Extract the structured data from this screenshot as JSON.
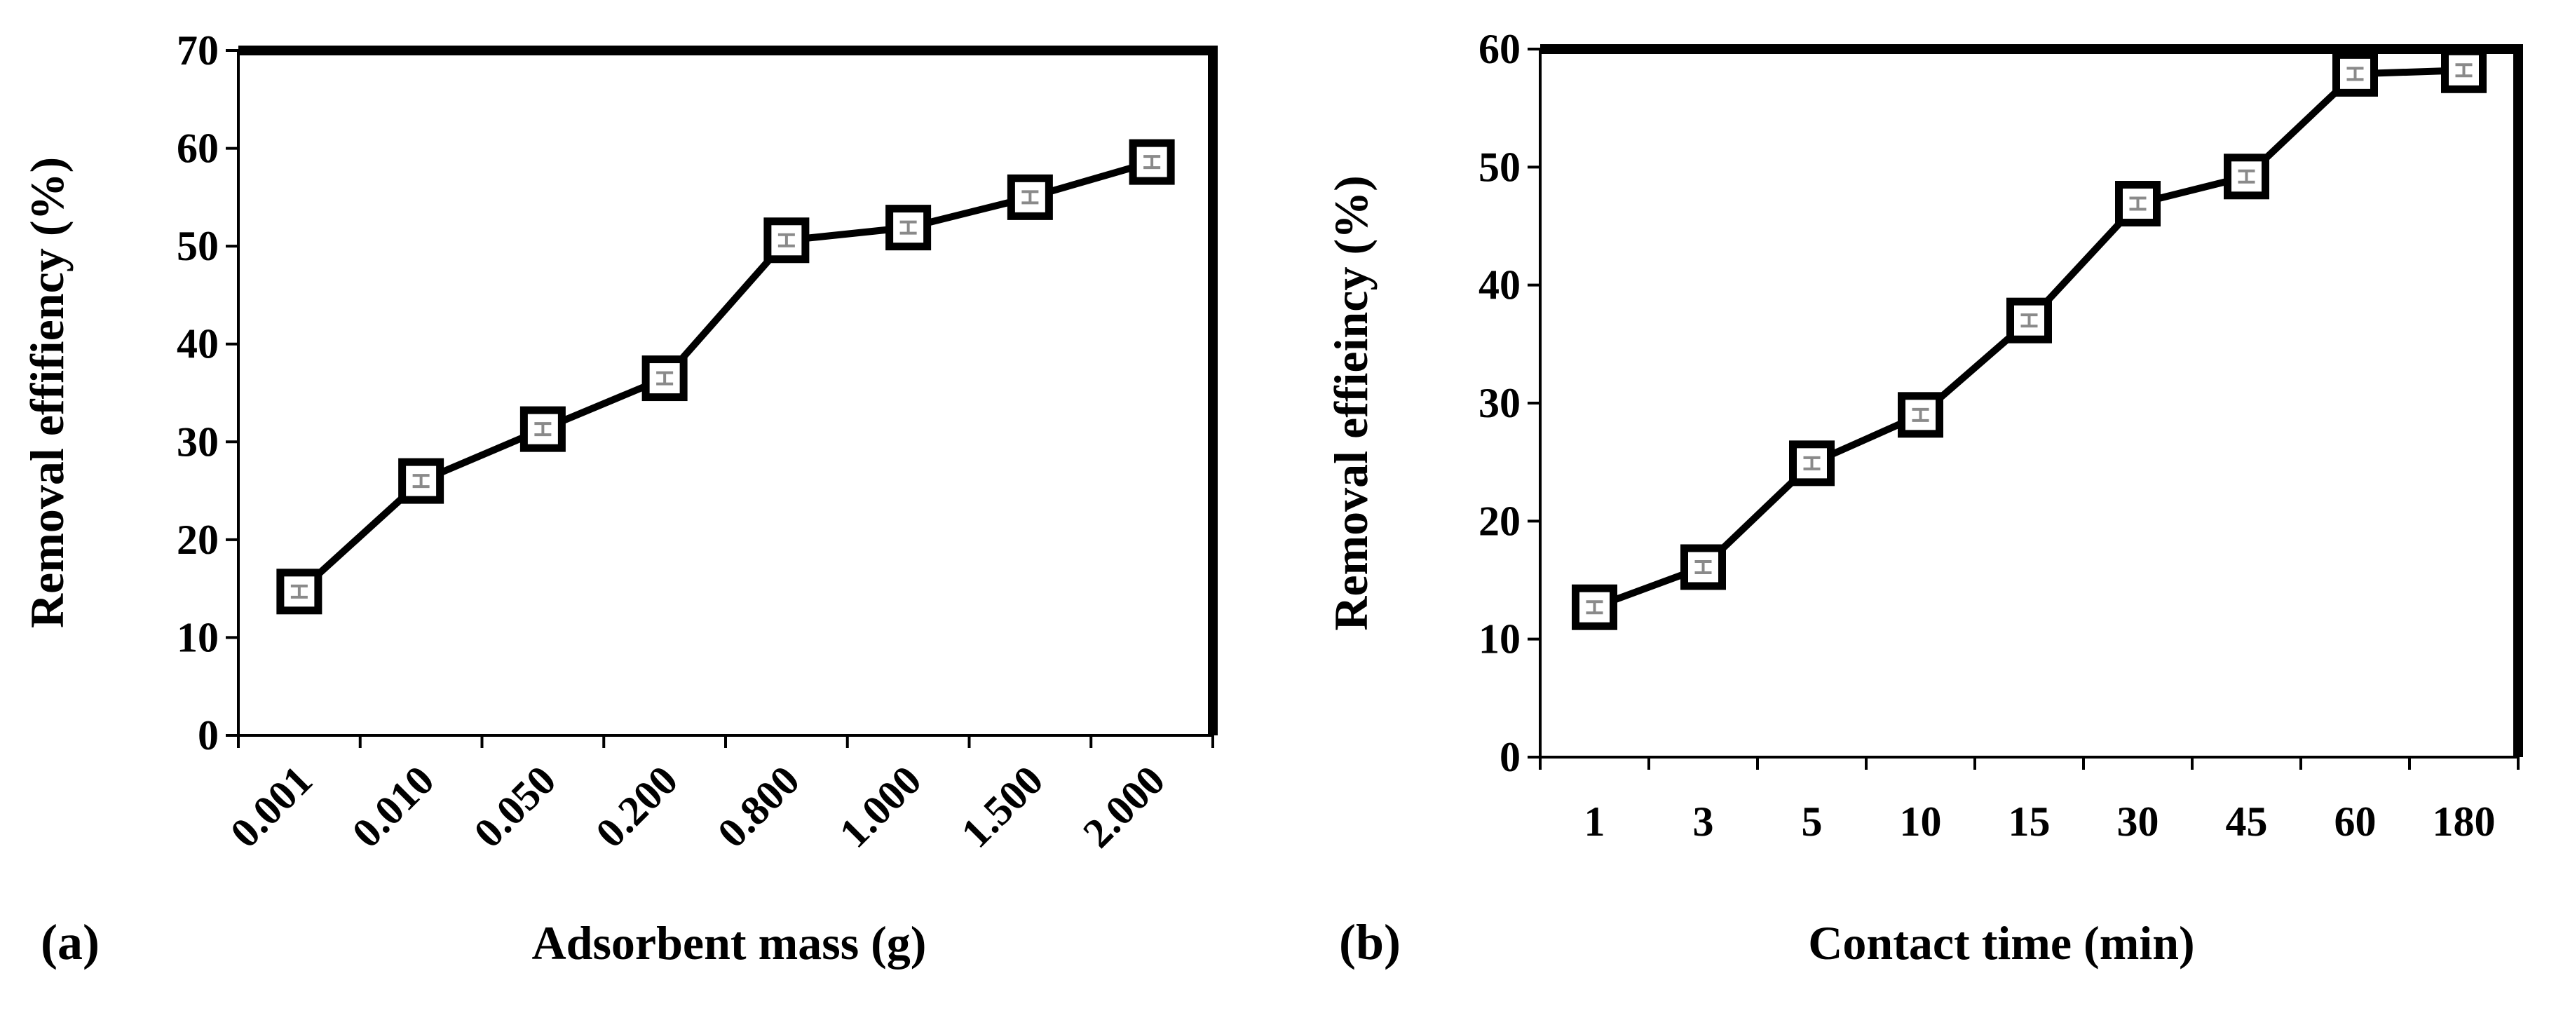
{
  "chart_data": [
    {
      "type": "line",
      "panel_label": "(a)",
      "title": "",
      "xlabel": "Adsorbent mass (g)",
      "ylabel": "Removal effifiency (%)",
      "ylim": [
        0,
        70
      ],
      "yticks": [
        "0",
        "10",
        "20",
        "30",
        "40",
        "50",
        "60",
        "70"
      ],
      "categories": [
        "0.001",
        "0.010",
        "0.050",
        "0.200",
        "0.800",
        "1.000",
        "1.500",
        "2.000"
      ],
      "series": [
        {
          "name": "Removal efficiency",
          "values": [
            14.7,
            26.0,
            31.3,
            36.5,
            50.6,
            51.9,
            55.0,
            58.6
          ]
        }
      ],
      "marker": "square",
      "color": "#000000",
      "grid": false
    },
    {
      "type": "line",
      "panel_label": "(b)",
      "title": "",
      "xlabel": "Contact time (min)",
      "ylabel": "Removal effieincy (%)",
      "ylim": [
        0,
        60
      ],
      "yticks": [
        "0",
        "10",
        "20",
        "30",
        "40",
        "50",
        "60"
      ],
      "categories": [
        "1",
        "3",
        "5",
        "10",
        "15",
        "30",
        "45",
        "60",
        "180"
      ],
      "series": [
        {
          "name": "Removal efficiency",
          "values": [
            12.7,
            16.1,
            24.9,
            29.0,
            37.0,
            46.9,
            49.2,
            57.9,
            58.2
          ]
        }
      ],
      "marker": "square",
      "color": "#000000",
      "grid": false
    }
  ]
}
